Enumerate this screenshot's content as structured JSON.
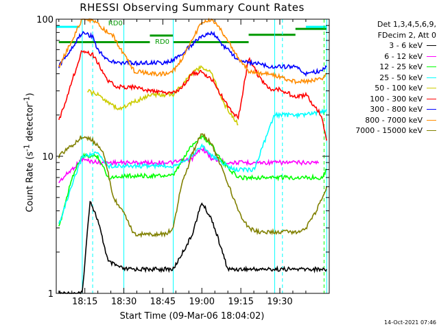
{
  "chart_data": {
    "type": "line",
    "title": "RHESSI Observing Summary Count Rates",
    "xlabel": "Start Time (09-Mar-06 18:04:02)",
    "ylabel_main": "Count Rate (s",
    "ylabel_sup1": "-1",
    "ylabel_mid": " detector",
    "ylabel_sup2": "-1",
    "ylabel_end": ")",
    "ylog": true,
    "ylim": [
      1,
      100
    ],
    "x_ticks": [
      "18:15",
      "18:30",
      "18:45",
      "19:00",
      "19:15",
      "19:30"
    ],
    "y_ticks": [
      "1",
      "10",
      "100"
    ],
    "x_tick_minutes": [
      15,
      30,
      45,
      60,
      75,
      90
    ],
    "xlim_minutes": [
      4,
      109
    ],
    "grid": false,
    "legend": {
      "header1": "Det 1,3,4,5,6,9,",
      "header2": "FDecim 2, Att 0",
      "placement": "right"
    },
    "annotations": [
      "RD0",
      "RD0"
    ],
    "timestamp": "14-Oct-2021 07:46",
    "series": [
      {
        "name": "3 - 6 keV",
        "color": "#000000",
        "x": [
          5,
          14,
          17,
          20,
          24,
          30,
          40,
          49,
          56,
          60,
          64,
          70,
          74,
          80,
          86,
          100,
          108
        ],
        "y": [
          1,
          1,
          4.8,
          3.4,
          1.7,
          1.5,
          1.5,
          1.5,
          2.6,
          4.6,
          3.4,
          1.5,
          1.5,
          1.5,
          1.5,
          1.5,
          1.5
        ]
      },
      {
        "name": "6 - 12 keV",
        "color": "#ff00ff",
        "x": [
          5,
          14,
          20,
          30,
          40,
          49,
          56,
          60,
          64,
          70,
          78,
          88,
          100,
          105
        ],
        "y": [
          6.5,
          9.5,
          9,
          9,
          9,
          9,
          9.5,
          11.5,
          9.5,
          9,
          9,
          9,
          9,
          9
        ]
      },
      {
        "name": "12 - 25 keV",
        "color": "#00ff00",
        "x": [
          5,
          10,
          14,
          20,
          24,
          30,
          40,
          49,
          52,
          56,
          60,
          64,
          68,
          74,
          80,
          88,
          98,
          106,
          108
        ],
        "y": [
          3,
          7,
          10,
          10,
          7,
          7.2,
          7.2,
          7.2,
          9,
          12,
          14,
          12,
          9,
          7,
          7,
          7,
          7,
          7,
          8
        ]
      },
      {
        "name": "25 - 50 keV",
        "color": "#00ffff",
        "x": [
          5,
          14,
          20,
          24,
          28,
          40,
          49,
          56,
          60,
          64,
          72,
          80,
          88,
          98,
          106,
          108
        ],
        "y": [
          3.2,
          10,
          10.5,
          8.5,
          8.5,
          8.5,
          8.5,
          10,
          12,
          10,
          8,
          8,
          20,
          20,
          21,
          22
        ]
      },
      {
        "name": "50 - 100 keV",
        "color": "#cccc00",
        "x": [
          16,
          20,
          24,
          28,
          40,
          49,
          56,
          60,
          64,
          68,
          74
        ],
        "y": [
          30,
          28,
          25,
          22,
          28,
          28,
          40,
          45,
          40,
          25,
          17
        ]
      },
      {
        "name": "100 - 300 keV",
        "color": "#ff0000",
        "x": [
          5,
          14,
          18,
          20,
          24,
          28,
          34,
          40,
          46,
          49,
          52,
          56,
          60,
          64,
          70,
          74,
          78,
          82,
          86,
          90,
          96,
          100,
          106,
          108
        ],
        "y": [
          18,
          60,
          55,
          48,
          35,
          32,
          32,
          30,
          29,
          29,
          31,
          40,
          41,
          36,
          23,
          19,
          52,
          38,
          31,
          31,
          27,
          28,
          20,
          13
        ]
      },
      {
        "name": "300 - 800 keV",
        "color": "#0000ff",
        "x": [
          5,
          14,
          18,
          20,
          24,
          28,
          34,
          40,
          46,
          49,
          52,
          56,
          60,
          64,
          68,
          74,
          78,
          82,
          86,
          90,
          96,
          100,
          106,
          108
        ],
        "y": [
          45,
          80,
          75,
          60,
          50,
          48,
          48,
          48,
          48,
          50,
          55,
          65,
          75,
          80,
          65,
          50,
          48,
          48,
          45,
          45,
          45,
          40,
          42,
          45
        ]
      },
      {
        "name": "800 - 7000 keV",
        "color": "#ff8c00",
        "x": [
          5,
          10,
          14,
          18,
          22,
          26,
          30,
          34,
          40,
          46,
          49,
          52,
          56,
          60,
          64,
          68,
          74,
          78,
          82,
          86,
          90,
          96,
          100,
          106,
          108
        ],
        "y": [
          45,
          70,
          100,
          98,
          85,
          75,
          55,
          42,
          40,
          40,
          42,
          50,
          70,
          95,
          100,
          80,
          52,
          42,
          40,
          40,
          38,
          35,
          35,
          37,
          40
        ]
      },
      {
        "name": "7000 - 15000 keV",
        "color": "#808000",
        "x": [
          5,
          10,
          14,
          18,
          22,
          26,
          30,
          34,
          40,
          46,
          49,
          52,
          56,
          60,
          64,
          68,
          74,
          78,
          82,
          86,
          90,
          96,
          100,
          104,
          108
        ],
        "y": [
          10,
          12,
          14,
          13,
          11,
          5,
          3.8,
          2.7,
          2.7,
          2.7,
          3,
          6,
          10,
          15,
          12,
          8,
          4,
          3,
          2.8,
          2.8,
          2.8,
          2.8,
          3,
          4,
          6
        ]
      }
    ],
    "flag_segments": [
      {
        "name": "RD0",
        "color": "#009900",
        "x0": 5,
        "x1": 40,
        "y": 68
      },
      {
        "name": "RD0",
        "color": "#009900",
        "x0": 40,
        "x1": 49,
        "y": 76
      },
      {
        "name": "RD0",
        "color": "#009900",
        "x0": 49,
        "x1": 78,
        "y": 68
      },
      {
        "name": "RD0",
        "color": "#009900",
        "x0": 78,
        "x1": 96,
        "y": 77
      },
      {
        "name": "RD0",
        "color": "#009900",
        "x0": 96,
        "x1": 108,
        "y": 85
      }
    ],
    "cyan_flag_segments": [
      {
        "x0": 4,
        "x1": 13,
        "y": 88
      },
      {
        "x0": 100,
        "x1": 108,
        "y": 88
      }
    ],
    "vertical_markers": [
      {
        "x": 14,
        "color": "#00ffff",
        "style": "solid"
      },
      {
        "x": 18,
        "color": "#00ffff",
        "style": "dashed"
      },
      {
        "x": 30,
        "color": "#00ffff",
        "style": "solid"
      },
      {
        "x": 49,
        "color": "#00ffff",
        "style": "solid"
      },
      {
        "x": 88,
        "color": "#00ffff",
        "style": "solid"
      },
      {
        "x": 91,
        "color": "#00ffff",
        "style": "dashed"
      },
      {
        "x": 107,
        "color": "#00ff00",
        "style": "dashed"
      },
      {
        "x": 108,
        "color": "#00ffff",
        "style": "solid"
      }
    ]
  }
}
